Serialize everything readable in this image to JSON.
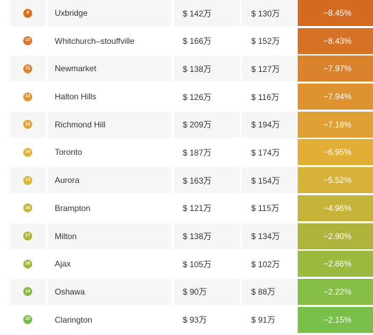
{
  "rows": [
    {
      "rank": "9",
      "name": "Uxbridge",
      "price_prev": "$ 142万",
      "price_now": "$ 130万",
      "change": "−8.45%",
      "badge_color": "#d86e22",
      "change_color": "#d46b20"
    },
    {
      "rank": "10",
      "name": "Whitchurch–stouffville",
      "price_prev": "$ 166万",
      "price_now": "$ 152万",
      "change": "−8.43%",
      "badge_color": "#d9742a",
      "change_color": "#d67226"
    },
    {
      "rank": "11",
      "name": "Newmarket",
      "price_prev": "$ 138万",
      "price_now": "$ 127万",
      "change": "−7.97%",
      "badge_color": "#dc8430",
      "change_color": "#db822c"
    },
    {
      "rank": "12",
      "name": "Halton Hills",
      "price_prev": "$ 126万",
      "price_now": "$ 116万",
      "change": "−7.94%",
      "badge_color": "#df9434",
      "change_color": "#de9230"
    },
    {
      "rank": "13",
      "name": "Richmond Hill",
      "price_prev": "$ 209万",
      "price_now": "$ 194万",
      "change": "−7.18%",
      "badge_color": "#e1a238",
      "change_color": "#e0a034"
    },
    {
      "rank": "14",
      "name": "Toronto",
      "price_prev": "$ 187万",
      "price_now": "$ 174万",
      "change": "−6.95%",
      "badge_color": "#e3b03a",
      "change_color": "#e2ae36"
    },
    {
      "rank": "15",
      "name": "Aurora",
      "price_prev": "$ 163万",
      "price_now": "$ 154万",
      "change": "−5.52%",
      "badge_color": "#d8b43a",
      "change_color": "#d6b238"
    },
    {
      "rank": "16",
      "name": "Brampton",
      "price_prev": "$ 121万",
      "price_now": "$ 115万",
      "change": "−4.96%",
      "badge_color": "#c7b63c",
      "change_color": "#c6b43a"
    },
    {
      "rank": "17",
      "name": "Milton",
      "price_prev": "$ 138万",
      "price_now": "$ 134万",
      "change": "−2.90%",
      "badge_color": "#b2b53e",
      "change_color": "#b0b43c"
    },
    {
      "rank": "18",
      "name": "Ajax",
      "price_prev": "$ 105万",
      "price_now": "$ 102万",
      "change": "−2.86%",
      "badge_color": "#9cb840",
      "change_color": "#9aba40"
    },
    {
      "rank": "19",
      "name": "Oshawa",
      "price_prev": "$ 90万",
      "price_now": "$ 88万",
      "change": "−2.22%",
      "badge_color": "#86ba44",
      "change_color": "#86bd44"
    },
    {
      "rank": "20",
      "name": "Clarington",
      "price_prev": "$ 93万",
      "price_now": "$ 91万",
      "change": "−2.15%",
      "badge_color": "#74bb48",
      "change_color": "#78c04a"
    }
  ]
}
